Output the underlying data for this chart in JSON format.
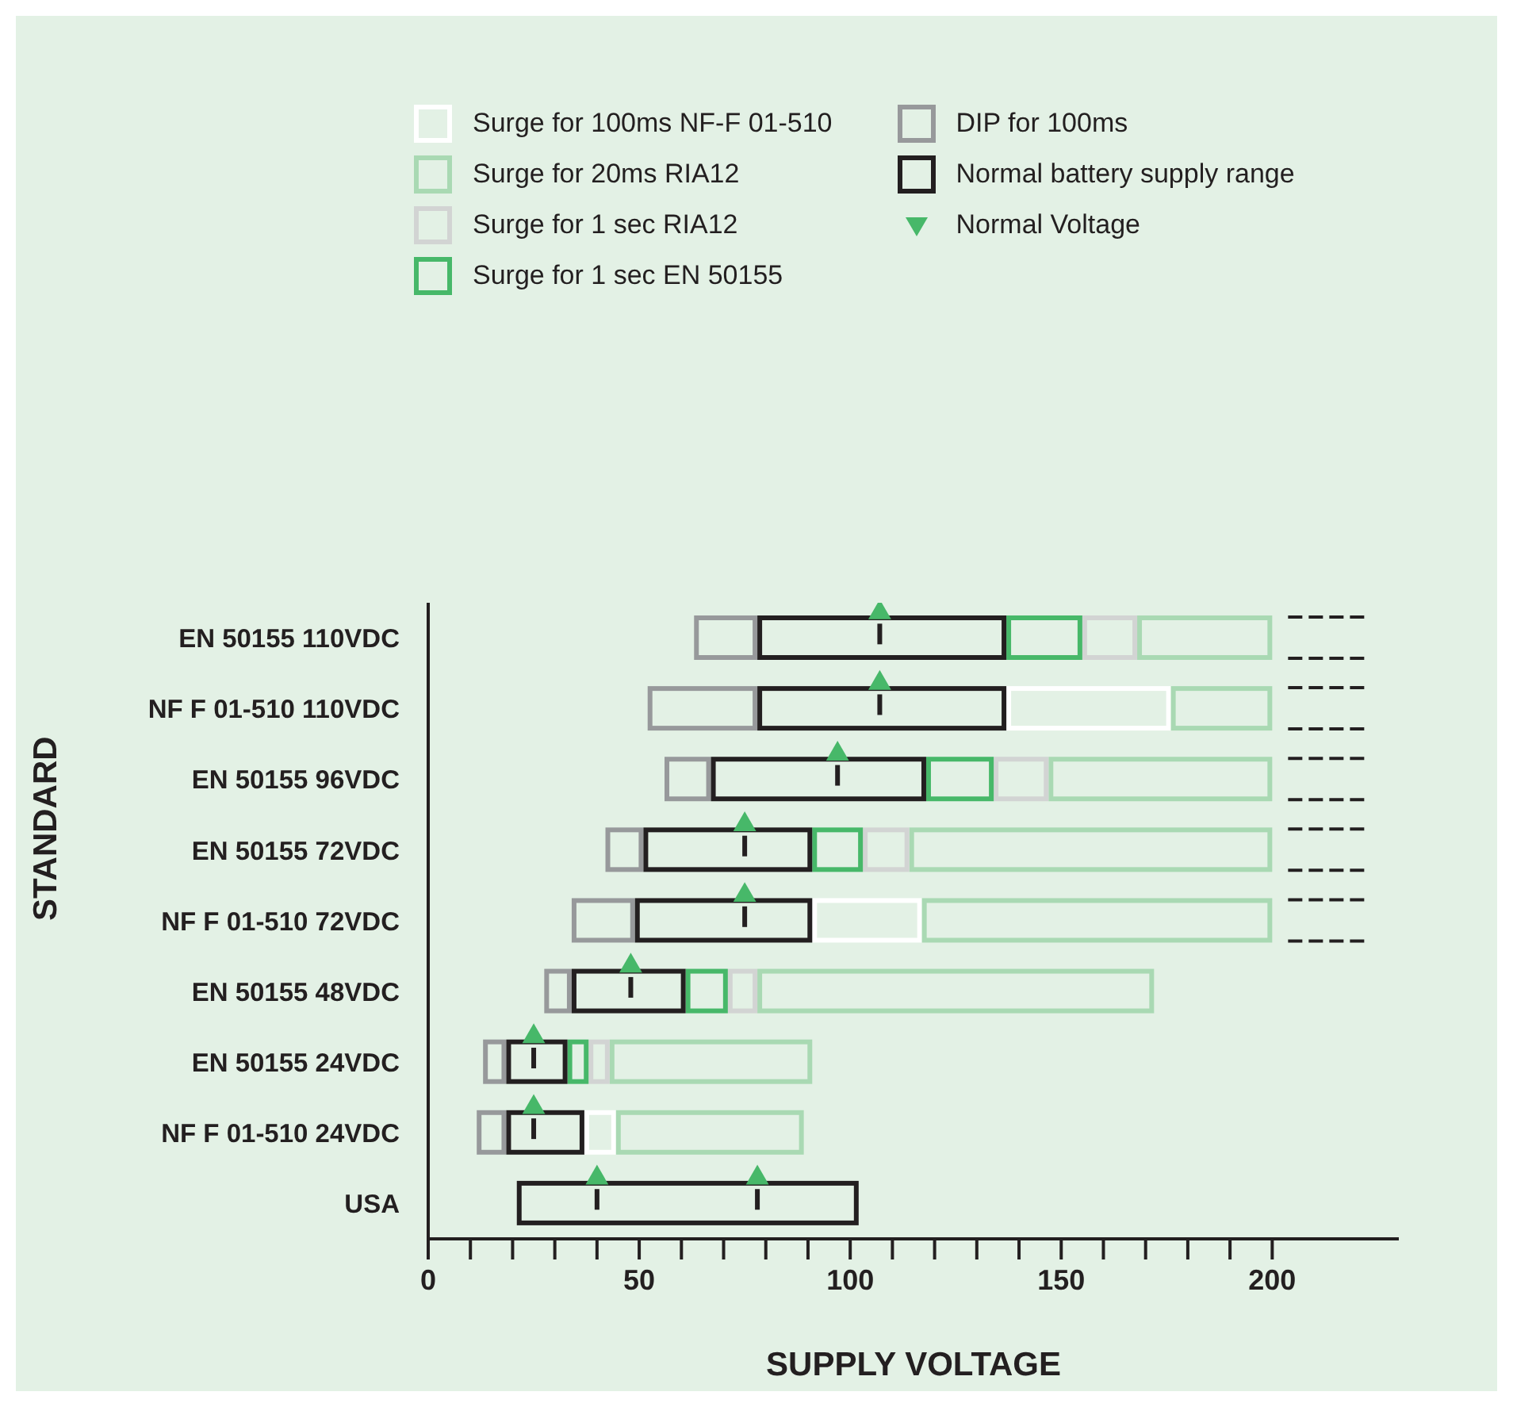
{
  "chart_data": {
    "type": "bar",
    "orientation": "horizontal",
    "xlabel": "SUPPLY VOLTAGE",
    "ylabel": "STANDARD",
    "legend": "top",
    "categories": [
      "EN 50155 110VDC",
      "NF F 01-510 110VDC",
      "EN 50155 96VDC",
      "EN 50155 72VDC",
      "NF F 01-510 72VDC",
      "EN 50155 48VDC",
      "EN 50155 24VDC",
      "NF F 01-510 24VDC",
      "USA"
    ],
    "xlim": [
      0,
      230
    ],
    "xticks": [
      0,
      {
        "value": 10,
        "label": null
      },
      {
        "value": 20,
        "label": null
      },
      {
        "value": 30,
        "label": null
      },
      {
        "value": 40,
        "label": null
      },
      50,
      {
        "value": 60,
        "label": null
      },
      {
        "value": 70,
        "label": null
      },
      {
        "value": 80,
        "label": null
      },
      {
        "value": 90,
        "label": null
      },
      100,
      {
        "value": 110,
        "label": null
      },
      {
        "value": 120,
        "label": null
      },
      {
        "value": 130,
        "label": null
      },
      {
        "value": 140,
        "label": null
      },
      150,
      {
        "value": 160,
        "label": null
      },
      {
        "value": 170,
        "label": null
      },
      {
        "value": 180,
        "label": null
      },
      {
        "value": 190,
        "label": null
      },
      200
    ],
    "series": [
      {
        "name": "Surge for 100ms NF-F 01-510",
        "color": "#ffffff",
        "base": [
          null,
          137,
          null,
          null,
          91,
          null,
          null,
          37,
          null
        ],
        "values": [
          null,
          39,
          null,
          null,
          26,
          null,
          null,
          7.5,
          null
        ]
      },
      {
        "name": "Surge for 20ms RIA12",
        "color": "#a9d9b3",
        "base": [
          168,
          176,
          147,
          114,
          117,
          78,
          43,
          44.5,
          null
        ],
        "values": [
          32,
          24,
          53,
          86,
          83,
          94,
          48,
          44.5,
          null
        ]
      },
      {
        "name": "Surge for 1 sec RIA12",
        "color": "#d2d4d3",
        "base": [
          155,
          null,
          134,
          103,
          null,
          71,
          38,
          null,
          null
        ],
        "values": [
          13,
          null,
          13,
          11,
          null,
          7,
          5,
          null,
          null
        ]
      },
      {
        "name": "Surge for 1 sec EN 50155",
        "color": "#47b869",
        "base": [
          137,
          null,
          118,
          91,
          null,
          61,
          33,
          null,
          null
        ],
        "values": [
          18,
          null,
          16,
          12,
          null,
          10,
          5,
          null,
          null
        ]
      },
      {
        "name": "DIP for 100ms",
        "color": "#97999b",
        "base": [
          63,
          52,
          56,
          42,
          34,
          27.5,
          13,
          11.5,
          null
        ],
        "values": [
          15,
          26,
          11,
          9,
          15,
          6.5,
          5.5,
          7,
          null
        ]
      },
      {
        "name": "Normal battery supply range",
        "color": "#231f20",
        "base": [
          78,
          78,
          67,
          51,
          49,
          34,
          18.5,
          18.5,
          21
        ],
        "values": [
          59,
          59,
          51,
          40,
          42,
          27,
          14.5,
          18.5,
          81
        ]
      },
      {
        "name": "Normal Voltage",
        "type": "scatter",
        "marker": "triangle",
        "color": "#47b869",
        "x": [
          "EN 50155 110VDC",
          "NF F 01-510 110VDC",
          "EN 50155 96VDC",
          "EN 50155 72VDC",
          "NF F 01-510 72VDC",
          "EN 50155 48VDC",
          "EN 50155 24VDC",
          "NF F 01-510 24VDC",
          "USA",
          "USA"
        ],
        "values": [
          107,
          107,
          97,
          75,
          75,
          48,
          25,
          25,
          40,
          78
        ]
      }
    ]
  }
}
